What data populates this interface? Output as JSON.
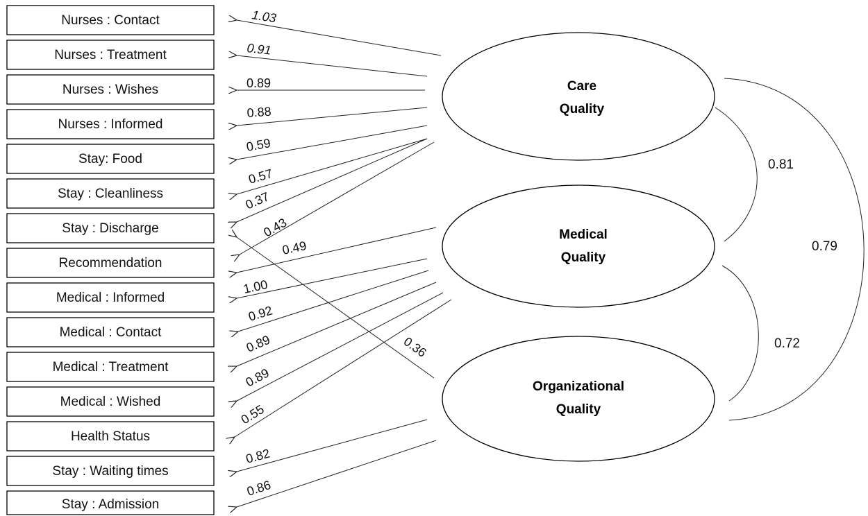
{
  "indicators": [
    "Nurses : Contact",
    "Nurses : Treatment",
    "Nurses : Wishes",
    "Nurses : Informed",
    "Stay: Food",
    "Stay : Cleanliness",
    "Stay : Discharge",
    "Recommendation",
    "Medical : Informed",
    "Medical : Contact",
    "Medical : Treatment",
    "Medical : Wished",
    "Health Status",
    "Stay : Waiting times",
    "Stay : Admission"
  ],
  "factors": [
    {
      "line1": "Care",
      "line2": "Quality"
    },
    {
      "line1": "Medical",
      "line2": "Quality"
    },
    {
      "line1": "Organizational",
      "line2": "Quality"
    }
  ],
  "loadings": [
    {
      "factor": 0,
      "indicator": 0,
      "value": "1.03"
    },
    {
      "factor": 0,
      "indicator": 1,
      "value": "0.91"
    },
    {
      "factor": 0,
      "indicator": 2,
      "value": "0.89"
    },
    {
      "factor": 0,
      "indicator": 3,
      "value": "0.88"
    },
    {
      "factor": 0,
      "indicator": 4,
      "value": "0.59"
    },
    {
      "factor": 0,
      "indicator": 5,
      "value": "0.57"
    },
    {
      "factor": 0,
      "indicator": 6,
      "value": "0.37"
    },
    {
      "factor": 0,
      "indicator": 7,
      "value": "0.43"
    },
    {
      "factor": 1,
      "indicator": 7,
      "value": "0.49"
    },
    {
      "factor": 1,
      "indicator": 8,
      "value": "1.00"
    },
    {
      "factor": 1,
      "indicator": 9,
      "value": "0.92"
    },
    {
      "factor": 1,
      "indicator": 10,
      "value": "0.89"
    },
    {
      "factor": 1,
      "indicator": 11,
      "value": "0.89"
    },
    {
      "factor": 1,
      "indicator": 12,
      "value": "0.55"
    },
    {
      "factor": 2,
      "indicator": 6,
      "value": "0.36"
    },
    {
      "factor": 2,
      "indicator": 13,
      "value": "0.82"
    },
    {
      "factor": 2,
      "indicator": 14,
      "value": "0.86"
    }
  ],
  "correlations": [
    {
      "from": 0,
      "to": 1,
      "value": "0.81"
    },
    {
      "from": 1,
      "to": 2,
      "value": "0.72"
    },
    {
      "from": 0,
      "to": 2,
      "value": "0.79"
    }
  ]
}
